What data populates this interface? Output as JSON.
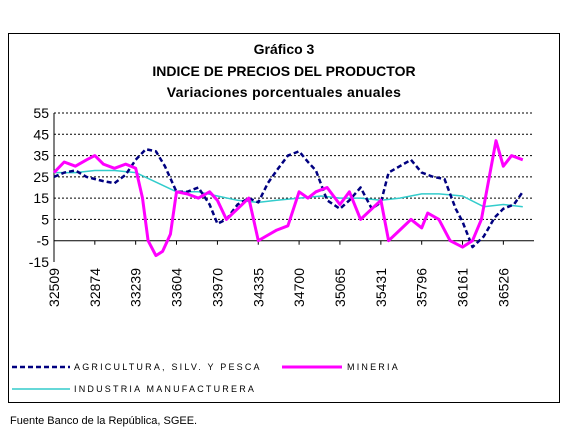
{
  "chart_data": {
    "type": "line",
    "title_lines": [
      "Gráfico 3",
      "INDICE DE PRECIOS DEL PRODUCTOR",
      "Variaciones porcentuales anuales"
    ],
    "x_ticks": [
      "32509",
      "32874",
      "33239",
      "33604",
      "33970",
      "34335",
      "34700",
      "35065",
      "35431",
      "35796",
      "36161",
      "36526"
    ],
    "xlim": [
      32509,
      36800
    ],
    "ylim": [
      -15,
      55
    ],
    "y_ticks": [
      -15,
      -5,
      5,
      15,
      25,
      35,
      45,
      55
    ],
    "grid": true,
    "legend_placement": "bottom",
    "series": [
      {
        "name": "AGRICULTURA, SILV. Y PESCA",
        "color": "#000080",
        "style": "dashed",
        "x": [
          32509,
          32600,
          32700,
          32800,
          32874,
          32950,
          33050,
          33150,
          33239,
          33330,
          33420,
          33500,
          33604,
          33700,
          33800,
          33900,
          33970,
          34050,
          34150,
          34250,
          34335,
          34420,
          34500,
          34600,
          34700,
          34780,
          34850,
          34950,
          35065,
          35150,
          35250,
          35350,
          35431,
          35500,
          35600,
          35700,
          35796,
          35900,
          36000,
          36100,
          36161,
          36250,
          36350,
          36450,
          36526,
          36620,
          36700
        ],
        "values": [
          25,
          27,
          28,
          25,
          24,
          23,
          22,
          26,
          33,
          38,
          37,
          30,
          18,
          18,
          20,
          12,
          3,
          5,
          12,
          15,
          13,
          22,
          28,
          35,
          37,
          32,
          28,
          14,
          10,
          14,
          20,
          10,
          13,
          27,
          30,
          33,
          27,
          25,
          24,
          10,
          4,
          -8,
          -3,
          6,
          10,
          12,
          18
        ]
      },
      {
        "name": "MINERIA",
        "color": "#ff00ff",
        "style": "solid",
        "x": [
          32509,
          32600,
          32700,
          32800,
          32874,
          32950,
          33050,
          33150,
          33239,
          33300,
          33350,
          33420,
          33480,
          33550,
          33604,
          33700,
          33800,
          33900,
          33970,
          34050,
          34150,
          34250,
          34335,
          34400,
          34500,
          34600,
          34700,
          34780,
          34850,
          34950,
          35065,
          35150,
          35250,
          35350,
          35431,
          35500,
          35600,
          35700,
          35796,
          35850,
          35950,
          36050,
          36161,
          36250,
          36330,
          36400,
          36460,
          36526,
          36600,
          36700
        ],
        "values": [
          27,
          32,
          30,
          33,
          35,
          31,
          29,
          31,
          29,
          15,
          -5,
          -12,
          -10,
          -2,
          18,
          17,
          15,
          18,
          14,
          5,
          10,
          15,
          -5,
          -3,
          0,
          2,
          18,
          15,
          18,
          20,
          12,
          18,
          5,
          10,
          14,
          -5,
          0,
          5,
          1,
          8,
          5,
          -5,
          -8,
          -5,
          5,
          25,
          42,
          30,
          35,
          33
        ]
      },
      {
        "name": "INDUSTRIA MANUFACTURERA",
        "color": "#33cccc",
        "style": "solid",
        "x": [
          32509,
          32700,
          32874,
          33050,
          33239,
          33400,
          33604,
          33800,
          33970,
          34150,
          34335,
          34500,
          34700,
          34900,
          35065,
          35250,
          35431,
          35600,
          35796,
          35950,
          36161,
          36350,
          36526,
          36700
        ],
        "values": [
          27,
          27,
          28,
          28,
          27,
          23,
          18,
          18,
          16,
          14,
          13,
          14,
          15,
          16,
          15,
          15,
          14,
          15,
          17,
          17,
          16,
          11,
          12,
          11
        ]
      }
    ]
  },
  "source": "Fuente Banco de la República, SGEE."
}
